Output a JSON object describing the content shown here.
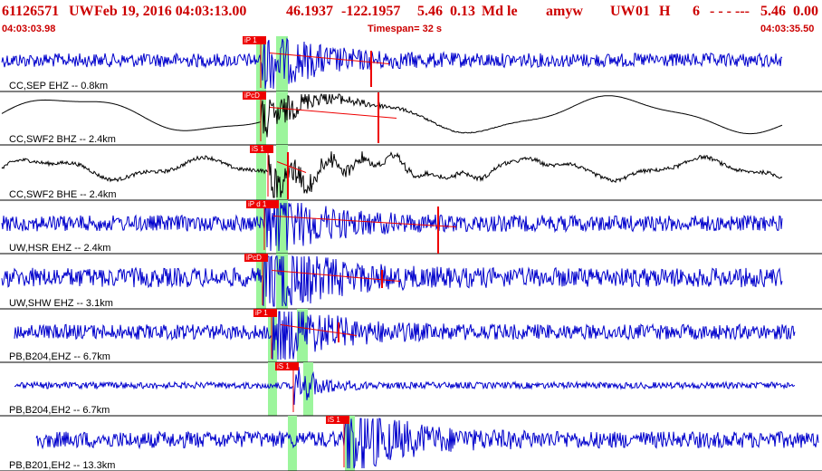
{
  "header": {
    "event_id": "61126571",
    "network": "UW",
    "datetime": "Feb 19, 2016 04:03:13.00",
    "lat": "46.1937",
    "lon": "-122.1957",
    "magnitude": "5.46",
    "residual": "0.13",
    "mag_type": "Md",
    "event_type": "le",
    "analyst": "amyw",
    "source": "UW",
    "version": "01",
    "quality": "H",
    "num_phases": "6",
    "dashes": "-   -   - ---",
    "depth": "5.46",
    "trailing": "0.00",
    "start_time": "04:03:03.98",
    "timespan": "Timespan=  32 s",
    "end_time": "04:03:35.50"
  },
  "colors": {
    "header_red": "#cc0000",
    "trace_blue": "#0000cc",
    "trace_black": "#000000",
    "pick_red": "#ee0000",
    "pick_window_green": "#9cf59c",
    "separator": "#000000"
  },
  "traces": [
    {
      "label": "CC,SEP EHZ -- 0.8km",
      "color": "blue",
      "style": "noise",
      "pick": "iP 1",
      "amp": 0.25
    },
    {
      "label": "CC,SWF2 BHZ -- 2.4km",
      "color": "black",
      "style": "wave",
      "pick": "iPcD",
      "amp": 0.55
    },
    {
      "label": "CC,SWF2 BHE -- 2.4km",
      "color": "black",
      "style": "wave2",
      "pick": "iS 1",
      "amp": 0.45
    },
    {
      "label": "UW,HSR EHZ -- 2.4km",
      "color": "blue",
      "style": "noise",
      "pick": "iP d 1",
      "amp": 0.3
    },
    {
      "label": "UW,SHW EHZ -- 3.1km",
      "color": "blue",
      "style": "noise",
      "pick": "iPcD",
      "amp": 0.35
    },
    {
      "label": "PB,B204,EHZ -- 6.7km",
      "color": "blue",
      "style": "noise",
      "pick": "iP 1",
      "amp": 0.28
    },
    {
      "label": "PB,B204,EH2 -- 6.7km",
      "color": "blue",
      "style": "quiet",
      "pick": "iS 1",
      "amp": 0.12
    },
    {
      "label": "PB,B201,EH2 -- 13.3km",
      "color": "blue",
      "style": "noise",
      "pick": "iS 1",
      "amp": 0.3
    }
  ]
}
